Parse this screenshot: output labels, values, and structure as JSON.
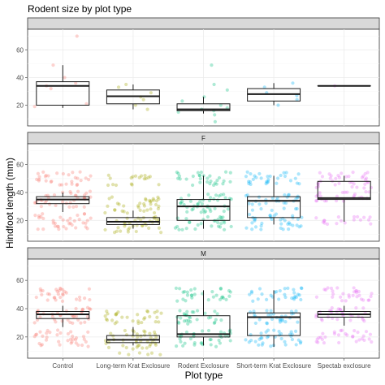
{
  "chart_data": {
    "type": "boxplot",
    "title": "Rodent size by plot type",
    "xlabel": "Plot type",
    "ylabel": "Hindfoot length (mm)",
    "ylim": [
      5,
      75
    ],
    "yticks": [
      20,
      40,
      60
    ],
    "grid": true,
    "categories": [
      "Control",
      "Long-term Krat Exclosure",
      "Rodent Exclosure",
      "Short-term Krat Exclosure",
      "Spectab exclosure"
    ],
    "colors": [
      "#F8766D",
      "#A3A500",
      "#00BF7D",
      "#00B0F6",
      "#E76BF3"
    ],
    "panels": [
      {
        "label": "",
        "boxes": [
          {
            "min": 18,
            "q1": 20,
            "median": 34,
            "q3": 37,
            "max": 49
          },
          {
            "min": 17,
            "q1": 21,
            "median": 26.5,
            "q3": 31,
            "max": 35
          },
          {
            "min": 14,
            "q1": 16,
            "median": 17,
            "q3": 21,
            "max": 26
          },
          {
            "min": 20,
            "q1": 23,
            "median": 28,
            "q3": 32,
            "max": 36
          },
          {
            "min": 34,
            "q1": 34,
            "median": 34,
            "q3": 34,
            "max": 34
          }
        ],
        "points": [
          [
            19,
            21,
            32,
            34,
            36,
            40,
            49,
            70
          ],
          [
            17,
            20,
            24,
            26,
            29,
            33,
            35
          ],
          [
            8,
            13,
            15,
            16,
            17,
            18,
            20,
            23,
            26,
            31,
            35,
            49
          ],
          [
            20,
            24,
            27,
            29,
            33,
            36
          ],
          [
            34
          ]
        ]
      },
      {
        "label": "F",
        "boxes": [
          {
            "min": 26,
            "q1": 32,
            "median": 35,
            "q3": 37,
            "max": 40
          },
          {
            "min": 14,
            "q1": 17,
            "median": 19,
            "q3": 22,
            "max": 27
          },
          {
            "min": 14,
            "q1": 20,
            "median": 30,
            "q3": 35,
            "max": 52
          },
          {
            "min": 17,
            "q1": 22,
            "median": 34,
            "q3": 37,
            "max": 52
          },
          {
            "min": 19,
            "q1": 35,
            "median": 36,
            "q3": 48,
            "max": 52
          }
        ],
        "points": [
          [
            14,
            16,
            18,
            20,
            22,
            24,
            30,
            32,
            34,
            36,
            38,
            40,
            46,
            48,
            50,
            52,
            54
          ],
          [
            12,
            14,
            16,
            18,
            20,
            22,
            26,
            28,
            30,
            32,
            34,
            36,
            46,
            50,
            52
          ],
          [
            14,
            16,
            18,
            20,
            22,
            26,
            28,
            30,
            32,
            34,
            36,
            38,
            46,
            48,
            50,
            52,
            54
          ],
          [
            14,
            16,
            18,
            20,
            22,
            24,
            28,
            32,
            34,
            36,
            38,
            46,
            48,
            50,
            52,
            54
          ],
          [
            18,
            20,
            22,
            34,
            36,
            38,
            40,
            44,
            46,
            48,
            50,
            52,
            54
          ]
        ]
      },
      {
        "label": "M",
        "boxes": [
          {
            "min": 27,
            "q1": 33,
            "median": 36,
            "q3": 38,
            "max": 42
          },
          {
            "min": 14,
            "q1": 16,
            "median": 18,
            "q3": 21,
            "max": 27
          },
          {
            "min": 14,
            "q1": 20,
            "median": 22,
            "q3": 35,
            "max": 53
          },
          {
            "min": 13,
            "q1": 21,
            "median": 34,
            "q3": 37,
            "max": 53
          },
          {
            "min": 28,
            "q1": 34,
            "median": 36,
            "q3": 38,
            "max": 42
          }
        ],
        "points": [
          [
            14,
            16,
            18,
            20,
            22,
            24,
            30,
            32,
            34,
            36,
            38,
            40,
            46,
            48,
            50,
            52,
            54
          ],
          [
            8,
            12,
            14,
            16,
            18,
            20,
            22,
            24,
            30,
            32,
            34,
            36,
            38
          ],
          [
            14,
            16,
            18,
            20,
            22,
            24,
            30,
            32,
            34,
            36,
            38,
            46,
            48,
            50,
            52,
            54
          ],
          [
            14,
            16,
            18,
            20,
            22,
            24,
            30,
            32,
            34,
            36,
            38,
            46,
            48,
            50,
            52,
            54
          ],
          [
            16,
            18,
            20,
            22,
            24,
            32,
            34,
            36,
            38,
            40,
            46,
            48,
            50,
            52,
            54
          ]
        ]
      }
    ]
  }
}
